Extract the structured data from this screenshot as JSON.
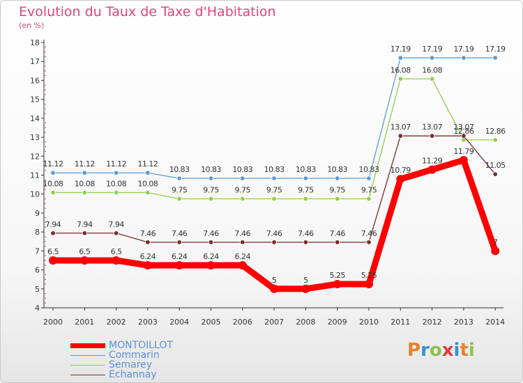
{
  "chart_data": {
    "type": "line",
    "title": "Evolution du Taux de Taxe d'Habitation",
    "subtitle": "(en %)",
    "x": [
      "2000",
      "2001",
      "2002",
      "2003",
      "2004",
      "2005",
      "2006",
      "2007",
      "2008",
      "2009",
      "2010",
      "2011",
      "2012",
      "2013",
      "2014"
    ],
    "ylim": [
      4,
      18
    ],
    "yticks": [
      4,
      5,
      6,
      7,
      8,
      9,
      10,
      11,
      12,
      13,
      14,
      15,
      16,
      17,
      18
    ],
    "grid": false,
    "legend_position": "bottom-left",
    "series": [
      {
        "name": "MONTOILLOT",
        "color": "#ff0000",
        "values": [
          6.5,
          6.5,
          6.5,
          6.24,
          6.24,
          6.24,
          6.24,
          5,
          5,
          5.25,
          5.25,
          10.79,
          11.29,
          11.79,
          7
        ],
        "labels": [
          "6.5",
          "6.5",
          "6.5",
          "6.24",
          "6.24",
          "6.24",
          "6.24",
          "5",
          "5",
          "5.25",
          "5.25",
          "10.79",
          "11.29",
          "11.79",
          "7"
        ]
      },
      {
        "name": "Commarin",
        "color": "#5b9bd5",
        "values": [
          11.12,
          11.12,
          11.12,
          11.12,
          10.83,
          10.83,
          10.83,
          10.83,
          10.83,
          10.83,
          10.83,
          17.19,
          17.19,
          17.19,
          17.19
        ],
        "labels": [
          "11.12",
          "11.12",
          "11.12",
          "11.12",
          "10.83",
          "10.83",
          "10.83",
          "10.83",
          "10.83",
          "10.83",
          "10.83",
          "17.19",
          "17.19",
          "17.19",
          "17.19"
        ]
      },
      {
        "name": "Semarey",
        "color": "#8ed04b",
        "values": [
          10.08,
          10.08,
          10.08,
          10.08,
          9.75,
          9.75,
          9.75,
          9.75,
          9.75,
          9.75,
          9.75,
          16.08,
          16.08,
          12.86,
          12.86
        ],
        "labels": [
          "10.08",
          "10.08",
          "10.08",
          "10.08",
          "9.75",
          "9.75",
          "9.75",
          "9.75",
          "9.75",
          "9.75",
          "9.75",
          "16.08",
          "16.08",
          "12.86",
          "12.86"
        ]
      },
      {
        "name": "Echannay",
        "color": "#7a2a2a",
        "values": [
          7.94,
          7.94,
          7.94,
          7.46,
          7.46,
          7.46,
          7.46,
          7.46,
          7.46,
          7.46,
          7.46,
          13.07,
          13.07,
          13.07,
          11.05
        ],
        "labels": [
          "7.94",
          "7.94",
          "7.94",
          "7.46",
          "7.46",
          "7.46",
          "7.46",
          "7.46",
          "7.46",
          "7.46",
          "7.46",
          "13.07",
          "13.07",
          "13.07",
          "11.05"
        ]
      }
    ]
  },
  "logo": {
    "letters": [
      "P",
      "r",
      "o",
      "x",
      "i",
      "t",
      "i"
    ],
    "colors": [
      "#e8832a",
      "#3a8fd0",
      "#8bc34a",
      "#e03a3a",
      "#3a8fd0",
      "#e8832a",
      "#8bc34a"
    ]
  }
}
